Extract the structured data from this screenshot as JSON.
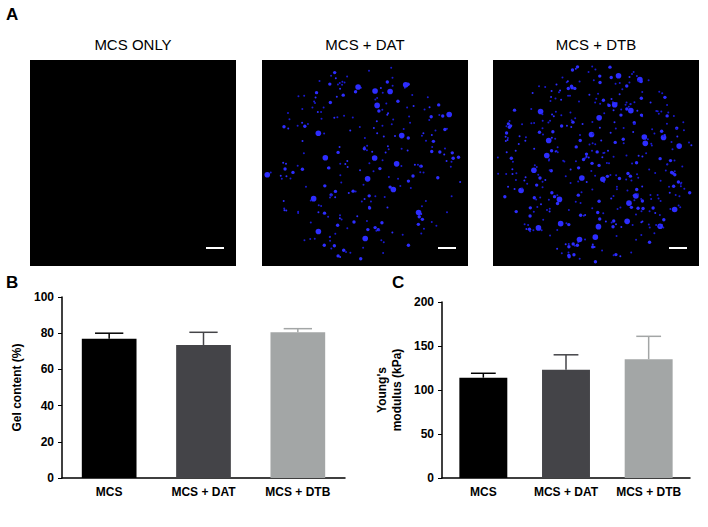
{
  "panel_labels": [
    "A",
    "B",
    "C"
  ],
  "images": {
    "titles": [
      "MCS ONLY",
      "MCS + DAT",
      "MCS + DTB"
    ]
  },
  "chart_data": [
    {
      "type": "bar",
      "ylabel": "Gel content (%)",
      "categories": [
        "MCS",
        "MCS + DAT",
        "MCS + DTB"
      ],
      "values": [
        77,
        73.5,
        80.5
      ],
      "errors": [
        3,
        7,
        2
      ],
      "colors": [
        "#000000",
        "#444448",
        "#a3a6a6"
      ],
      "ylim": [
        0,
        100
      ],
      "yticks": [
        0,
        20,
        40,
        60,
        80,
        100
      ],
      "grid": false
    },
    {
      "type": "bar",
      "ylabel": "Young's\nmodulus (kPa)",
      "categories": [
        "MCS",
        "MCS + DAT",
        "MCS + DTB"
      ],
      "values": [
        114,
        123,
        135
      ],
      "errors": [
        5,
        17,
        26
      ],
      "colors": [
        "#000000",
        "#444448",
        "#a3a6a6"
      ],
      "ylim": [
        0,
        200
      ],
      "yticks": [
        0,
        50,
        100,
        150,
        200
      ],
      "grid": false
    }
  ]
}
